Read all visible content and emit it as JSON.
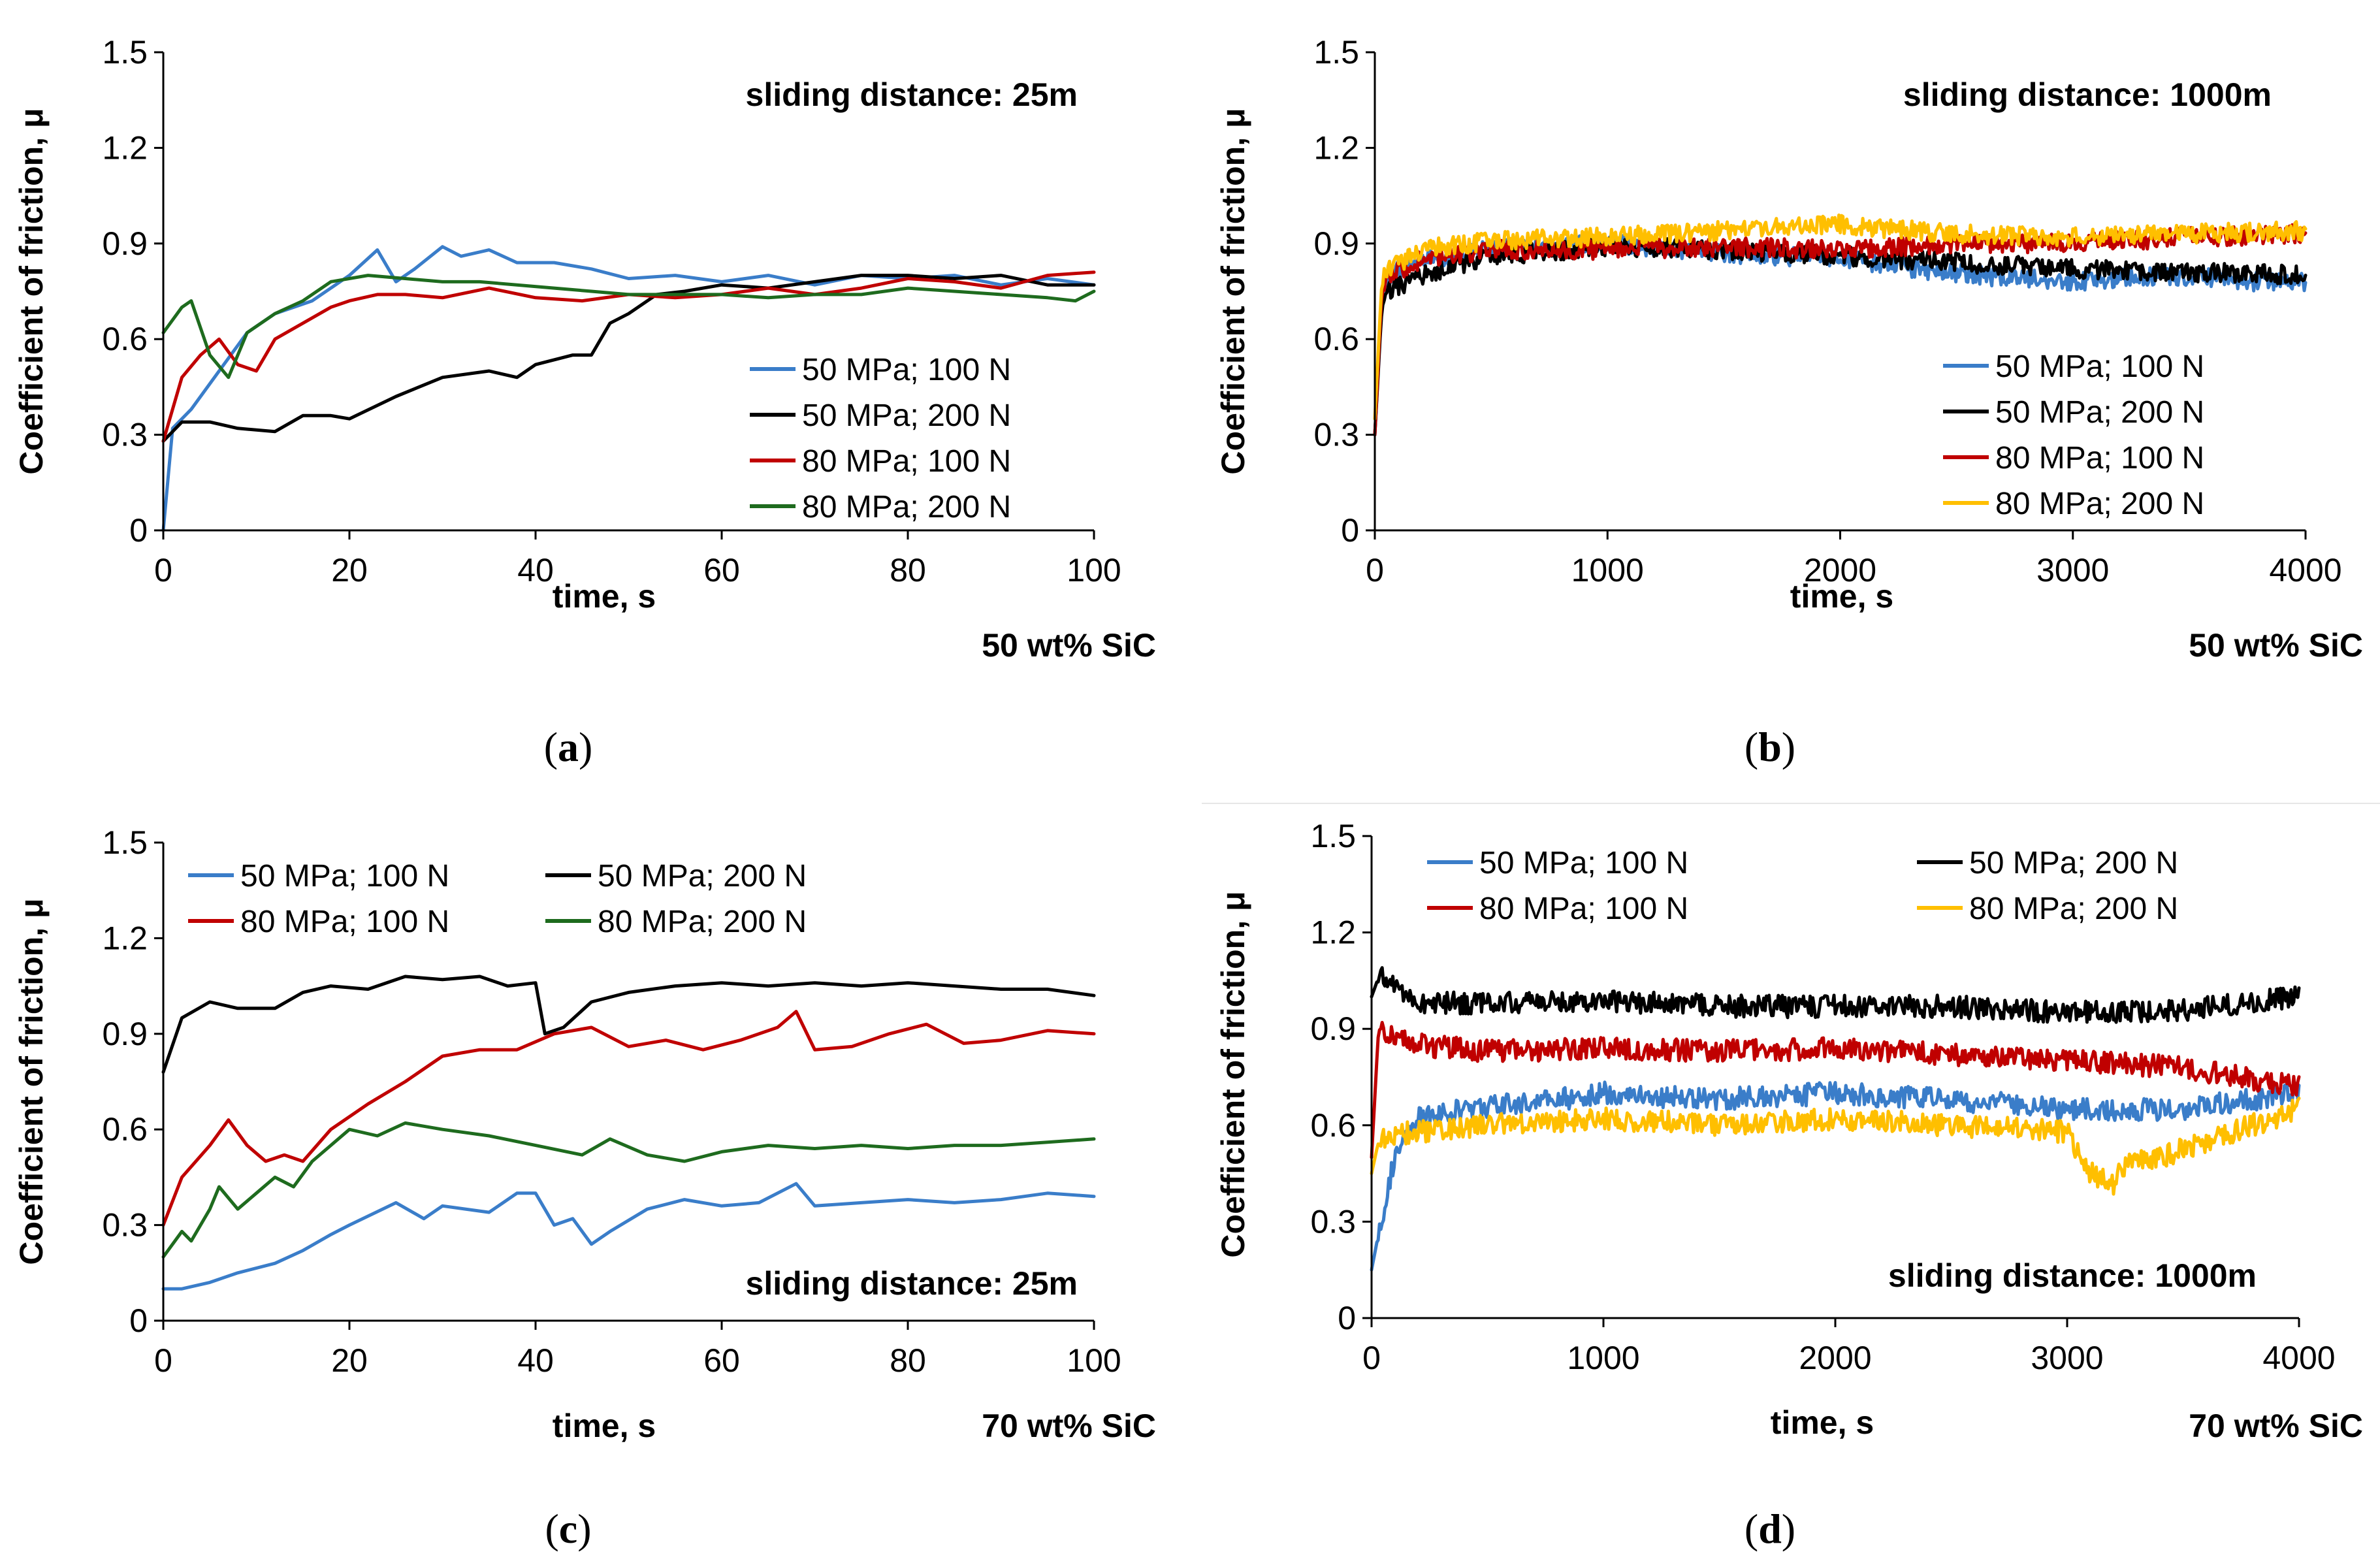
{
  "colors": {
    "blue": "#3a7dc9",
    "black": "#000000",
    "red": "#c00000",
    "green": "#1e6b1e",
    "yellow": "#ffbf00"
  },
  "chart_data": [
    {
      "id": "a",
      "type": "line",
      "panel_label_text": "a",
      "annotation_top": "sliding distance: 25m",
      "material": "50 wt% SiC",
      "xlabel": "time, s",
      "ylabel": "Coefficient of friction, μ",
      "xlim": [
        0,
        100
      ],
      "ylim": [
        0,
        1.5
      ],
      "xticks": [
        "0",
        "20",
        "40",
        "60",
        "80",
        "100"
      ],
      "yticks": [
        "0",
        "0.3",
        "0.6",
        "0.9",
        "1.2",
        "1.5"
      ],
      "legend_position": "middle-right",
      "legend_columns": 1,
      "noise": 0.0,
      "series": [
        {
          "name": "50 MPa; 100 N",
          "color": "#3a7dc9",
          "x": [
            0,
            1,
            3,
            6,
            9,
            12,
            16,
            20,
            23,
            25,
            27,
            30,
            32,
            35,
            38,
            42,
            46,
            50,
            55,
            60,
            65,
            70,
            75,
            80,
            85,
            90,
            95,
            100
          ],
          "y": [
            0.0,
            0.32,
            0.38,
            0.5,
            0.62,
            0.68,
            0.72,
            0.8,
            0.88,
            0.78,
            0.82,
            0.89,
            0.86,
            0.88,
            0.84,
            0.84,
            0.82,
            0.79,
            0.8,
            0.78,
            0.8,
            0.77,
            0.8,
            0.79,
            0.8,
            0.77,
            0.79,
            0.77
          ]
        },
        {
          "name": "50 MPa; 200 N",
          "color": "#000000",
          "x": [
            0,
            2,
            5,
            8,
            12,
            15,
            18,
            20,
            25,
            30,
            35,
            38,
            40,
            44,
            46,
            48,
            50,
            53,
            56,
            60,
            65,
            70,
            75,
            80,
            85,
            90,
            95,
            100
          ],
          "y": [
            0.28,
            0.34,
            0.34,
            0.32,
            0.31,
            0.36,
            0.36,
            0.35,
            0.42,
            0.48,
            0.5,
            0.48,
            0.52,
            0.55,
            0.55,
            0.65,
            0.68,
            0.74,
            0.75,
            0.77,
            0.76,
            0.78,
            0.8,
            0.8,
            0.79,
            0.8,
            0.77,
            0.77
          ]
        },
        {
          "name": "80 MPa; 100 N",
          "color": "#c00000",
          "x": [
            0,
            2,
            4,
            6,
            8,
            10,
            12,
            15,
            18,
            20,
            23,
            26,
            30,
            35,
            40,
            45,
            50,
            55,
            60,
            65,
            70,
            75,
            80,
            85,
            90,
            95,
            100
          ],
          "y": [
            0.28,
            0.48,
            0.55,
            0.6,
            0.52,
            0.5,
            0.6,
            0.65,
            0.7,
            0.72,
            0.74,
            0.74,
            0.73,
            0.76,
            0.73,
            0.72,
            0.74,
            0.73,
            0.74,
            0.76,
            0.74,
            0.76,
            0.79,
            0.78,
            0.76,
            0.8,
            0.81
          ]
        },
        {
          "name": "80 MPa; 200 N",
          "color": "#1e6b1e",
          "x": [
            0,
            2,
            3,
            5,
            7,
            9,
            12,
            15,
            18,
            22,
            26,
            30,
            34,
            38,
            42,
            46,
            50,
            55,
            60,
            65,
            70,
            75,
            80,
            85,
            90,
            95,
            98,
            100
          ],
          "y": [
            0.62,
            0.7,
            0.72,
            0.55,
            0.48,
            0.62,
            0.68,
            0.72,
            0.78,
            0.8,
            0.79,
            0.78,
            0.78,
            0.77,
            0.76,
            0.75,
            0.74,
            0.74,
            0.74,
            0.73,
            0.74,
            0.74,
            0.76,
            0.75,
            0.74,
            0.73,
            0.72,
            0.75
          ]
        }
      ]
    },
    {
      "id": "b",
      "type": "line",
      "panel_label_text": "b",
      "annotation_top": "sliding distance: 1000m",
      "material": "50 wt% SiC",
      "xlabel": "time, s",
      "ylabel": "Coefficient of friction, μ",
      "xlim": [
        0,
        4000
      ],
      "ylim": [
        0,
        1.5
      ],
      "xticks": [
        "0",
        "1000",
        "2000",
        "3000",
        "4000"
      ],
      "yticks": [
        "0",
        "0.3",
        "0.6",
        "0.9",
        "1.2",
        "1.5"
      ],
      "legend_position": "bottom-right",
      "legend_columns": 1,
      "noise": 0.03,
      "series": [
        {
          "name": "50 MPa; 100 N",
          "color": "#3a7dc9",
          "x": [
            0,
            30,
            60,
            200,
            500,
            1000,
            1500,
            2000,
            2300,
            2600,
            3000,
            3400,
            3800,
            4000
          ],
          "y": [
            0.3,
            0.72,
            0.8,
            0.85,
            0.88,
            0.9,
            0.87,
            0.85,
            0.82,
            0.8,
            0.78,
            0.8,
            0.78,
            0.78
          ]
        },
        {
          "name": "50 MPa; 200 N",
          "color": "#000000",
          "x": [
            0,
            30,
            60,
            200,
            500,
            1000,
            1500,
            2000,
            2500,
            3000,
            3500,
            4000
          ],
          "y": [
            0.3,
            0.7,
            0.75,
            0.8,
            0.86,
            0.89,
            0.88,
            0.86,
            0.84,
            0.82,
            0.81,
            0.8
          ]
        },
        {
          "name": "80 MPa; 100 N",
          "color": "#c00000",
          "x": [
            0,
            30,
            60,
            200,
            500,
            1000,
            1500,
            2000,
            2500,
            3000,
            3500,
            4000
          ],
          "y": [
            0.3,
            0.75,
            0.8,
            0.85,
            0.88,
            0.88,
            0.89,
            0.88,
            0.9,
            0.9,
            0.92,
            0.93
          ]
        },
        {
          "name": "80 MPa; 200 N",
          "color": "#ffbf00",
          "x": [
            0,
            30,
            60,
            200,
            500,
            1000,
            1500,
            2000,
            2500,
            3000,
            3500,
            4000
          ],
          "y": [
            0.35,
            0.78,
            0.82,
            0.88,
            0.91,
            0.92,
            0.94,
            0.96,
            0.93,
            0.92,
            0.93,
            0.94
          ]
        }
      ]
    },
    {
      "id": "c",
      "type": "line",
      "panel_label_text": "c",
      "annotation_bottom": "sliding distance: 25m",
      "material": "70 wt% SiC",
      "xlabel": "time, s",
      "ylabel": "Coefficient of friction, μ",
      "xlim": [
        0,
        100
      ],
      "ylim": [
        0,
        1.5
      ],
      "xticks": [
        "0",
        "20",
        "40",
        "60",
        "80",
        "100"
      ],
      "yticks": [
        "0",
        "0.3",
        "0.6",
        "0.9",
        "1.2",
        "1.5"
      ],
      "legend_position": "top",
      "legend_columns": 2,
      "noise": 0.0,
      "series": [
        {
          "name": "50 MPa; 100 N",
          "color": "#3a7dc9",
          "x": [
            0,
            2,
            5,
            8,
            12,
            15,
            18,
            20,
            25,
            28,
            30,
            35,
            38,
            40,
            42,
            44,
            46,
            48,
            52,
            56,
            60,
            64,
            68,
            70,
            75,
            80,
            85,
            90,
            95,
            100
          ],
          "y": [
            0.1,
            0.1,
            0.12,
            0.15,
            0.18,
            0.22,
            0.27,
            0.3,
            0.37,
            0.32,
            0.36,
            0.34,
            0.4,
            0.4,
            0.3,
            0.32,
            0.24,
            0.28,
            0.35,
            0.38,
            0.36,
            0.37,
            0.43,
            0.36,
            0.37,
            0.38,
            0.37,
            0.38,
            0.4,
            0.39
          ]
        },
        {
          "name": "50 MPa; 200 N",
          "color": "#000000",
          "x": [
            0,
            2,
            5,
            8,
            12,
            15,
            18,
            22,
            26,
            30,
            34,
            37,
            40,
            41,
            43,
            46,
            50,
            55,
            60,
            65,
            70,
            75,
            80,
            85,
            90,
            95,
            100
          ],
          "y": [
            0.78,
            0.95,
            1.0,
            0.98,
            0.98,
            1.03,
            1.05,
            1.04,
            1.08,
            1.07,
            1.08,
            1.05,
            1.06,
            0.9,
            0.92,
            1.0,
            1.03,
            1.05,
            1.06,
            1.05,
            1.06,
            1.05,
            1.06,
            1.05,
            1.04,
            1.04,
            1.02
          ]
        },
        {
          "name": "80 MPa; 100 N",
          "color": "#c00000",
          "x": [
            0,
            2,
            5,
            7,
            9,
            11,
            13,
            15,
            18,
            22,
            26,
            30,
            34,
            38,
            42,
            46,
            50,
            54,
            58,
            62,
            66,
            68,
            70,
            74,
            78,
            82,
            86,
            90,
            95,
            100
          ],
          "y": [
            0.3,
            0.45,
            0.55,
            0.63,
            0.55,
            0.5,
            0.52,
            0.5,
            0.6,
            0.68,
            0.75,
            0.83,
            0.85,
            0.85,
            0.9,
            0.92,
            0.86,
            0.88,
            0.85,
            0.88,
            0.92,
            0.97,
            0.85,
            0.86,
            0.9,
            0.93,
            0.87,
            0.88,
            0.91,
            0.9
          ]
        },
        {
          "name": "80 MPa; 200 N",
          "color": "#1e6b1e",
          "x": [
            0,
            2,
            3,
            5,
            6,
            8,
            10,
            12,
            14,
            16,
            18,
            20,
            23,
            26,
            30,
            35,
            40,
            45,
            48,
            52,
            56,
            60,
            65,
            70,
            75,
            80,
            85,
            90,
            95,
            100
          ],
          "y": [
            0.2,
            0.28,
            0.25,
            0.35,
            0.42,
            0.35,
            0.4,
            0.45,
            0.42,
            0.5,
            0.55,
            0.6,
            0.58,
            0.62,
            0.6,
            0.58,
            0.55,
            0.52,
            0.57,
            0.52,
            0.5,
            0.53,
            0.55,
            0.54,
            0.55,
            0.54,
            0.55,
            0.55,
            0.56,
            0.57
          ]
        }
      ]
    },
    {
      "id": "d",
      "type": "line",
      "panel_label_text": "d",
      "annotation_bottom": "sliding distance: 1000m",
      "material": "70 wt% SiC",
      "xlabel": "time, s",
      "ylabel": "Coefficient of friction, μ",
      "xlim": [
        0,
        4000
      ],
      "ylim": [
        0,
        1.5
      ],
      "xticks": [
        "0",
        "1000",
        "2000",
        "3000",
        "4000"
      ],
      "yticks": [
        "0",
        "0.3",
        "0.6",
        "0.9",
        "1.2",
        "1.5"
      ],
      "legend_position": "top",
      "legend_columns": 2,
      "noise": 0.035,
      "series": [
        {
          "name": "50 MPa; 100 N",
          "color": "#3a7dc9",
          "x": [
            0,
            40,
            100,
            200,
            400,
            800,
            1000,
            1500,
            2000,
            2500,
            3000,
            3500,
            3800,
            4000
          ],
          "y": [
            0.15,
            0.3,
            0.5,
            0.62,
            0.65,
            0.68,
            0.7,
            0.68,
            0.7,
            0.68,
            0.65,
            0.65,
            0.68,
            0.7
          ]
        },
        {
          "name": "50 MPa; 200 N",
          "color": "#000000",
          "x": [
            0,
            30,
            100,
            200,
            500,
            1000,
            1500,
            2000,
            2500,
            3000,
            3500,
            4000
          ],
          "y": [
            1.0,
            1.06,
            1.04,
            0.98,
            0.98,
            0.99,
            0.97,
            0.97,
            0.97,
            0.95,
            0.96,
            1.0
          ]
        },
        {
          "name": "80 MPa; 100 N",
          "color": "#c00000",
          "x": [
            0,
            30,
            100,
            200,
            500,
            1000,
            1500,
            2000,
            2500,
            3000,
            3500,
            4000
          ],
          "y": [
            0.5,
            0.9,
            0.88,
            0.85,
            0.83,
            0.84,
            0.83,
            0.84,
            0.82,
            0.8,
            0.78,
            0.72
          ]
        },
        {
          "name": "80 MPa; 200 N",
          "color": "#ffbf00",
          "x": [
            0,
            30,
            100,
            200,
            500,
            1000,
            1500,
            2000,
            2500,
            3000,
            3100,
            3200,
            3250,
            3400,
            3600,
            3800,
            4000
          ],
          "y": [
            0.45,
            0.55,
            0.57,
            0.58,
            0.6,
            0.62,
            0.6,
            0.62,
            0.6,
            0.58,
            0.45,
            0.42,
            0.48,
            0.5,
            0.55,
            0.6,
            0.65
          ]
        }
      ]
    }
  ]
}
